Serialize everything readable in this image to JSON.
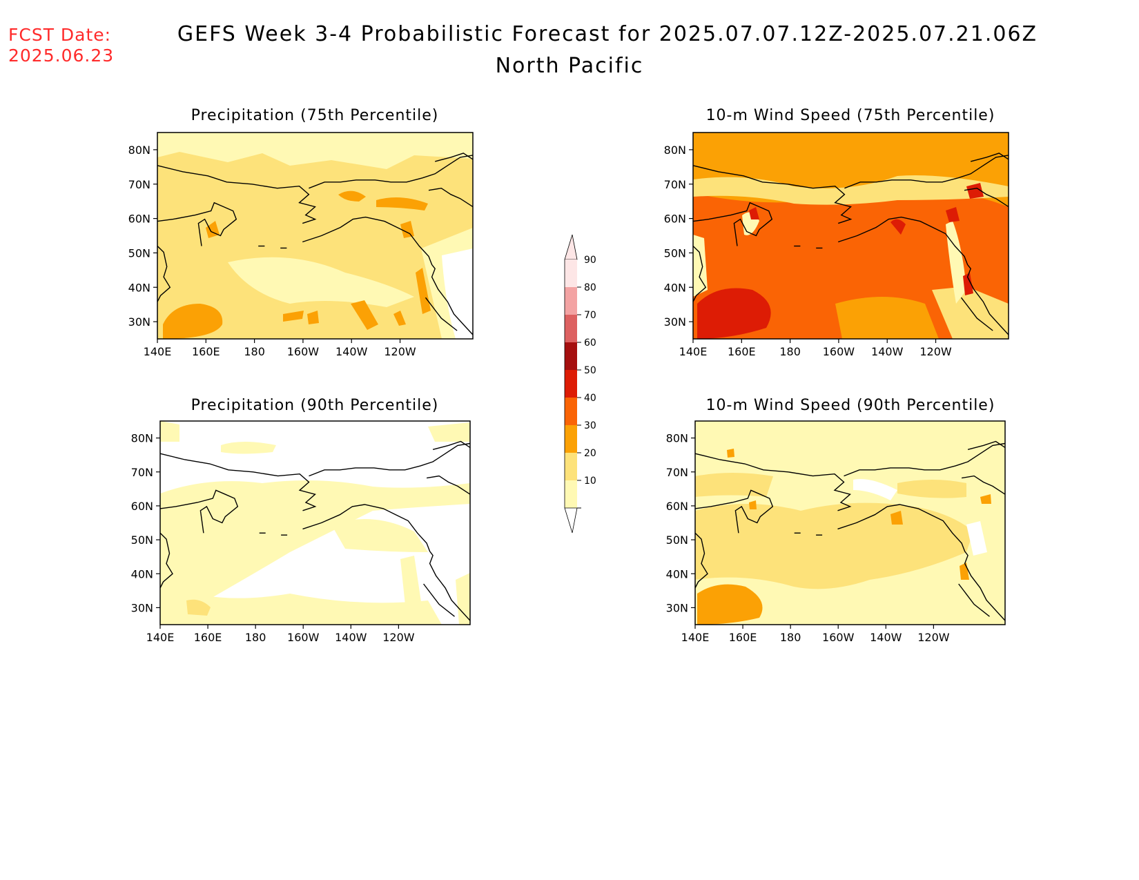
{
  "header": {
    "fcst_label": "FCST Date:",
    "fcst_date": "2025.06.23",
    "title": "GEFS Week 3-4 Probabilistic Forecast for 2025.07.07.12Z-2025.07.21.06Z",
    "subtitle": "North Pacific"
  },
  "colors": {
    "fcst_text": "#ff2a2a",
    "coast": "#000000"
  },
  "map": {
    "lon_labels": [
      "140E",
      "160E",
      "180",
      "160W",
      "140W",
      "120W"
    ],
    "lat_labels": [
      "80N",
      "70N",
      "60N",
      "50N",
      "40N",
      "30N"
    ],
    "lon_range": [
      "140E",
      "110W"
    ],
    "lat_range": [
      "25N",
      "85N"
    ]
  },
  "panels": [
    {
      "id": "precip75",
      "title": "Precipitation (75th Percentile)",
      "base_level": 20
    },
    {
      "id": "wind75",
      "title": "10-m Wind Speed (75th Percentile)",
      "base_level": 40
    },
    {
      "id": "precip90",
      "title": "Precipitation (90th Percentile)",
      "base_level": 0
    },
    {
      "id": "wind90",
      "title": "10-m Wind Speed (90th Percentile)",
      "base_level": 10
    }
  ],
  "colorbar": {
    "labels": [
      "90",
      "80",
      "70",
      "60",
      "50",
      "40",
      "30",
      "20",
      "10"
    ],
    "bins": [
      {
        "range": "90-100",
        "color": "#fde6e6"
      },
      {
        "range": "80-90",
        "color": "#f3a3a3"
      },
      {
        "range": "70-80",
        "color": "#dd6161"
      },
      {
        "range": "60-70",
        "color": "#a50f0f"
      },
      {
        "range": "50-60",
        "color": "#dd1c05"
      },
      {
        "range": "40-50",
        "color": "#fa6405"
      },
      {
        "range": "30-40",
        "color": "#fba105"
      },
      {
        "range": "20-30",
        "color": "#fde27a"
      },
      {
        "range": "10-20",
        "color": "#fff9b4"
      }
    ]
  }
}
